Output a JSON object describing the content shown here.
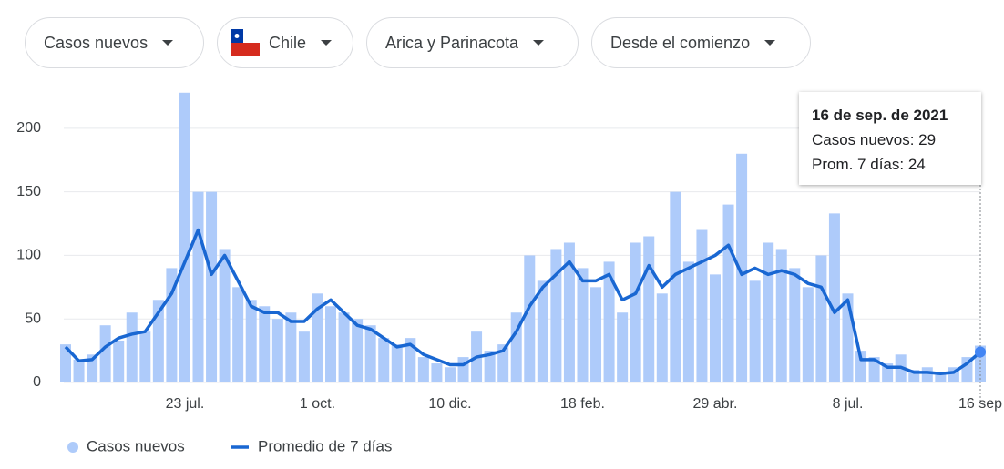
{
  "filters": [
    "Casos nuevos",
    "Chile",
    "Arica y Parinacota",
    "Desde el comienzo"
  ],
  "chart_data": {
    "type": "bar-line",
    "categories": [
      null,
      null,
      null,
      null,
      null,
      null,
      null,
      null,
      null,
      "23 jul.",
      null,
      null,
      null,
      null,
      null,
      null,
      null,
      null,
      null,
      "1 oct.",
      null,
      null,
      null,
      null,
      null,
      null,
      null,
      null,
      null,
      "10 dic.",
      null,
      null,
      null,
      null,
      null,
      null,
      null,
      null,
      null,
      "18 feb.",
      null,
      null,
      null,
      null,
      null,
      null,
      null,
      null,
      null,
      "29 abr.",
      null,
      null,
      null,
      null,
      null,
      null,
      null,
      null,
      null,
      "8 jul.",
      null,
      null,
      null,
      null,
      null,
      null,
      null,
      null,
      null,
      "16 sep"
    ],
    "series": [
      {
        "name": "Casos nuevos",
        "color": "#aecbfa",
        "values": [
          30,
          18,
          22,
          45,
          33,
          55,
          40,
          65,
          90,
          228,
          150,
          150,
          105,
          75,
          65,
          60,
          50,
          55,
          40,
          70,
          60,
          55,
          50,
          45,
          35,
          30,
          35,
          20,
          15,
          12,
          20,
          40,
          25,
          30,
          55,
          100,
          80,
          105,
          110,
          90,
          75,
          95,
          55,
          110,
          115,
          70,
          150,
          95,
          120,
          85,
          140,
          180,
          80,
          110,
          105,
          90,
          75,
          100,
          133,
          70,
          25,
          20,
          15,
          22,
          10,
          12,
          8,
          12,
          20,
          29
        ]
      },
      {
        "name": "Promedio de 7 días",
        "color": "#1967d2",
        "values": [
          28,
          17,
          18,
          28,
          35,
          38,
          40,
          55,
          70,
          95,
          120,
          85,
          100,
          80,
          60,
          55,
          55,
          48,
          48,
          58,
          65,
          55,
          45,
          42,
          35,
          28,
          30,
          22,
          18,
          14,
          14,
          20,
          22,
          25,
          40,
          60,
          75,
          85,
          95,
          80,
          80,
          85,
          65,
          70,
          92,
          75,
          85,
          90,
          95,
          100,
          108,
          85,
          90,
          85,
          88,
          85,
          78,
          75,
          55,
          65,
          18,
          18,
          12,
          12,
          8,
          8,
          7,
          8,
          15,
          24
        ]
      }
    ],
    "ylim": [
      0,
      230
    ],
    "yticks": [
      0,
      50,
      100,
      150,
      200
    ],
    "grid": true,
    "tooltip": {
      "title": "16 de sep. de 2021",
      "lines": [
        "Casos nuevos: 29",
        "Prom. 7 días: 24"
      ]
    }
  }
}
